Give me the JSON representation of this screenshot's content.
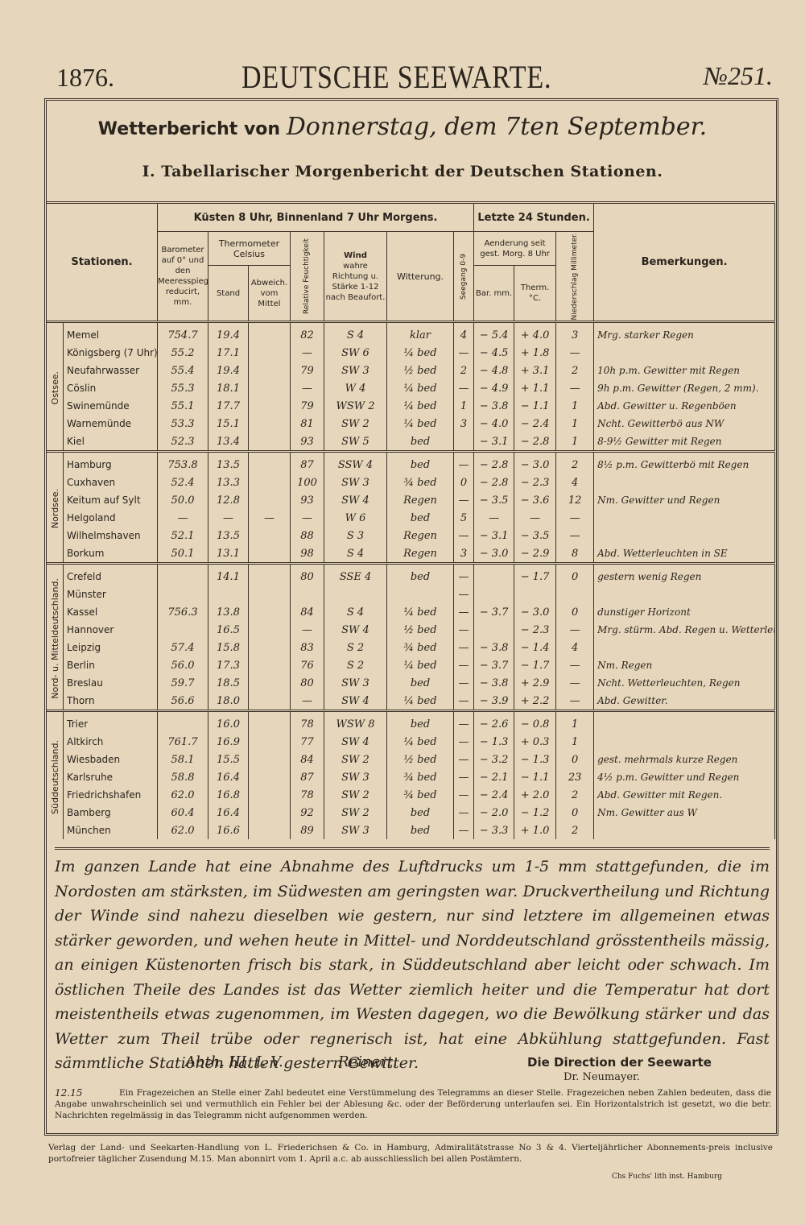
{
  "header": {
    "year": "1876.",
    "title": "DEUTSCHE SEEWARTE.",
    "number": "№251."
  },
  "report_title": {
    "label": "Wetterbericht von",
    "date": "Donnerstag, dem 7ten September."
  },
  "subtitle": "I. Tabellarischer Morgenbericht der Deutschen Stationen.",
  "table": {
    "headers": {
      "stations": "Stationen.",
      "morning": "Küsten 8 Uhr, Binnenland 7 Uhr Morgens.",
      "last24": "Letzte 24 Stunden.",
      "barometer": "Barometer auf 0° und den Meeresspiegel reducirt, mm.",
      "thermometer": "Thermometer Celsius",
      "stand": "Stand",
      "abweichung": "Abweich. vom Mittel",
      "humidity": "Relative Feuchtigkeit",
      "wind": "Wind",
      "wind_sub": "wahre Richtung u. Stärke 1-12 nach Beaufort.",
      "weather": "Witterung.",
      "sea": "Seegang 0-9",
      "change": "Aenderung seit gest. Morg. 8 Uhr",
      "bar": "Bar. mm.",
      "therm": "Therm. °C.",
      "precip": "Niederschlag Millimeter.",
      "remarks": "Bemerkungen."
    },
    "groups": [
      {
        "name": "Ostsee.",
        "rows": [
          [
            "Memel",
            "754.7",
            "19.4",
            null,
            "82",
            "S 4",
            "klar",
            "4",
            "− 5.4",
            "+ 4.0",
            "3",
            "Mrg. starker Regen"
          ],
          [
            "Königsberg (7 Uhr)",
            "55.2",
            "17.1",
            null,
            "—",
            "SW 6",
            "¼ bed",
            "—",
            "− 4.5",
            "+ 1.8",
            "—",
            null
          ],
          [
            "Neufahrwasser",
            "55.4",
            "19.4",
            null,
            "79",
            "SW 3",
            "½ bed",
            "2",
            "− 4.8",
            "+ 3.1",
            "2",
            "10h p.m. Gewitter mit Regen"
          ],
          [
            "Cöslin",
            "55.3",
            "18.1",
            null,
            "—",
            "W 4",
            "¼ bed",
            "—",
            "− 4.9",
            "+ 1.1",
            "—",
            "9h p.m. Gewitter (Regen, 2 mm)."
          ],
          [
            "Swinemünde",
            "55.1",
            "17.7",
            null,
            "79",
            "WSW 2",
            "¼ bed",
            "1",
            "− 3.8",
            "− 1.1",
            "1",
            "Abd. Gewitter u. Regenböen"
          ],
          [
            "Warnemünde",
            "53.3",
            "15.1",
            null,
            "81",
            "SW 2",
            "¼ bed",
            "3",
            "− 4.0",
            "− 2.4",
            "1",
            "Ncht. Gewitterbö aus NW"
          ],
          [
            "Kiel",
            "52.3",
            "13.4",
            null,
            "93",
            "SW 5",
            "bed",
            null,
            "− 3.1",
            "− 2.8",
            "1",
            "8-9½ Gewitter mit Regen"
          ]
        ]
      },
      {
        "name": "Nordsee.",
        "rows": [
          [
            "Hamburg",
            "753.8",
            "13.5",
            null,
            "87",
            "SSW 4",
            "bed",
            "—",
            "− 2.8",
            "− 3.0",
            "2",
            "8½ p.m. Gewitterbö mit Regen"
          ],
          [
            "Cuxhaven",
            "52.4",
            "13.3",
            null,
            "100",
            "SW 3",
            "¾ bed",
            "0",
            "− 2.8",
            "− 2.3",
            "4",
            null
          ],
          [
            "Keitum auf Sylt",
            "50.0",
            "12.8",
            null,
            "93",
            "SW 4",
            "Regen",
            "—",
            "− 3.5",
            "− 3.6",
            "12",
            "Nm. Gewitter und Regen"
          ],
          [
            "Helgoland",
            "—",
            "—",
            "—",
            "—",
            "W 6",
            "bed",
            "5",
            "—",
            "—",
            "—",
            null
          ],
          [
            "Wilhelmshaven",
            "52.1",
            "13.5",
            null,
            "88",
            "S 3",
            "Regen",
            "—",
            "− 3.1",
            "− 3.5",
            "—",
            null
          ],
          [
            "Borkum",
            "50.1",
            "13.1",
            null,
            "98",
            "S 4",
            "Regen",
            "3",
            "− 3.0",
            "− 2.9",
            "8",
            "Abd. Wetterleuchten in SE"
          ]
        ]
      },
      {
        "name": "Nord- u. Mitteldeutschland.",
        "rows": [
          [
            "Crefeld",
            null,
            "14.1",
            null,
            "80",
            "SSE 4",
            "bed",
            "—",
            null,
            "− 1.7",
            "0",
            "gestern wenig Regen"
          ],
          [
            "Münster",
            null,
            null,
            null,
            null,
            null,
            null,
            "—",
            null,
            null,
            null,
            null
          ],
          [
            "Kassel",
            "756.3",
            "13.8",
            null,
            "84",
            "S 4",
            "¼ bed",
            "—",
            "− 3.7",
            "− 3.0",
            "0",
            "dunstiger Horizont"
          ],
          [
            "Hannover",
            null,
            "16.5",
            null,
            "—",
            "SW 4",
            "½ bed",
            "—",
            null,
            "− 2.3",
            "—",
            "Mrg. stürm. Abd. Regen u. Wetterleuchten"
          ],
          [
            "Leipzig",
            "57.4",
            "15.8",
            null,
            "83",
            "S 2",
            "¾ bed",
            "—",
            "− 3.8",
            "− 1.4",
            "4",
            null
          ],
          [
            "Berlin",
            "56.0",
            "17.3",
            null,
            "76",
            "S 2",
            "¼ bed",
            "—",
            "− 3.7",
            "− 1.7",
            "—",
            "Nm. Regen"
          ],
          [
            "Breslau",
            "59.7",
            "18.5",
            null,
            "80",
            "SW 3",
            "bed",
            "—",
            "− 3.8",
            "+ 2.9",
            "—",
            "Ncht. Wetterleuchten, Regen"
          ],
          [
            "Thorn",
            "56.6",
            "18.0",
            null,
            "—",
            "SW 4",
            "¼ bed",
            "—",
            "− 3.9",
            "+ 2.2",
            "—",
            "Abd. Gewitter."
          ]
        ]
      },
      {
        "name": "Süddeutschland.",
        "rows": [
          [
            "Trier",
            null,
            "16.0",
            null,
            "78",
            "WSW 8",
            "bed",
            "—",
            "− 2.6",
            "− 0.8",
            "1",
            null
          ],
          [
            "Altkirch",
            "761.7",
            "16.9",
            null,
            "77",
            "SW 4",
            "¼ bed",
            "—",
            "− 1.3",
            "+ 0.3",
            "1",
            null
          ],
          [
            "Wiesbaden",
            "58.1",
            "15.5",
            null,
            "84",
            "SW 2",
            "½ bed",
            "—",
            "− 3.2",
            "− 1.3",
            "0",
            "gest. mehrmals kurze Regen"
          ],
          [
            "Karlsruhe",
            "58.8",
            "16.4",
            null,
            "87",
            "SW 3",
            "¾ bed",
            "—",
            "− 2.1",
            "− 1.1",
            "23",
            "4½ p.m. Gewitter und Regen"
          ],
          [
            "Friedrichshafen",
            "62.0",
            "16.8",
            null,
            "78",
            "SW 2",
            "¾ bed",
            "—",
            "− 2.4",
            "+ 2.0",
            "2",
            "Abd. Gewitter mit Regen."
          ],
          [
            "Bamberg",
            "60.4",
            "16.4",
            null,
            "92",
            "SW 2",
            "bed",
            "—",
            "− 2.0",
            "− 1.2",
            "0",
            "Nm. Gewitter aus W"
          ],
          [
            "München",
            "62.0",
            "16.6",
            null,
            "89",
            "SW 3",
            "bed",
            "—",
            "− 3.3",
            "+ 1.0",
            "2",
            null
          ]
        ]
      }
    ]
  },
  "summary": "Im ganzen Lande hat eine Abnahme des Luftdrucks um 1-5 mm stattgefunden, die im Nordosten am stärksten, im Südwesten am geringsten war. Druckvertheilung und Richtung der Winde sind nahezu dieselben wie gestern, nur sind letztere im allgemeinen etwas stärker geworden, und wehen heute in Mittel- und Norddeutschland grösstentheils mässig, an einigen Küstenorten frisch bis stark, in Süddeutschland aber leicht oder schwach. Im östlichen Theile des Landes ist das Wetter ziemlich heiter und die Temperatur hat dort meistentheils etwas zugenommen, im Westen dagegen, wo die Bewölkung stärker und das Wetter zum Theil trübe oder regnerisch ist, hat eine Abkühlung stattgefunden. Fast sämmtliche Stationen hatten gestern Gewitter.",
  "signature": {
    "department": "Abth. III. I. V.",
    "name": "Reinert.",
    "direction": "Die Direction der Seewarte",
    "director": "Dr. Neumayer."
  },
  "footnote": {
    "time": "12.15",
    "text": "Ein Fragezeichen an Stelle einer Zahl bedeutet eine Verstümmelung des Telegramms an dieser Stelle. Fragezeichen neben Zahlen bedeuten, dass die Angabe unwahrscheinlich sei und vermuthlich ein Fehler bei der Ablesung &c. oder der Beförderung unterlaufen sei. Ein Horizontalstrich ist gesetzt, wo die betr. Nachrichten regelmässig in das Telegramm nicht aufgenommen werden."
  },
  "publisher": "Verlag der Land- und Seekarten-Handlung von L. Friederichsen & Co. in Hamburg, Admiralitätstrasse No 3 & 4. Vierteljährlicher Abonnements-preis inclusive portofreier täglicher Zusendung M.15. Man abonnirt vom 1. April a.c. ab ausschliesslich bei allen Postämtern.",
  "lithographer": "Chs Fuchs' lith inst. Hamburg"
}
